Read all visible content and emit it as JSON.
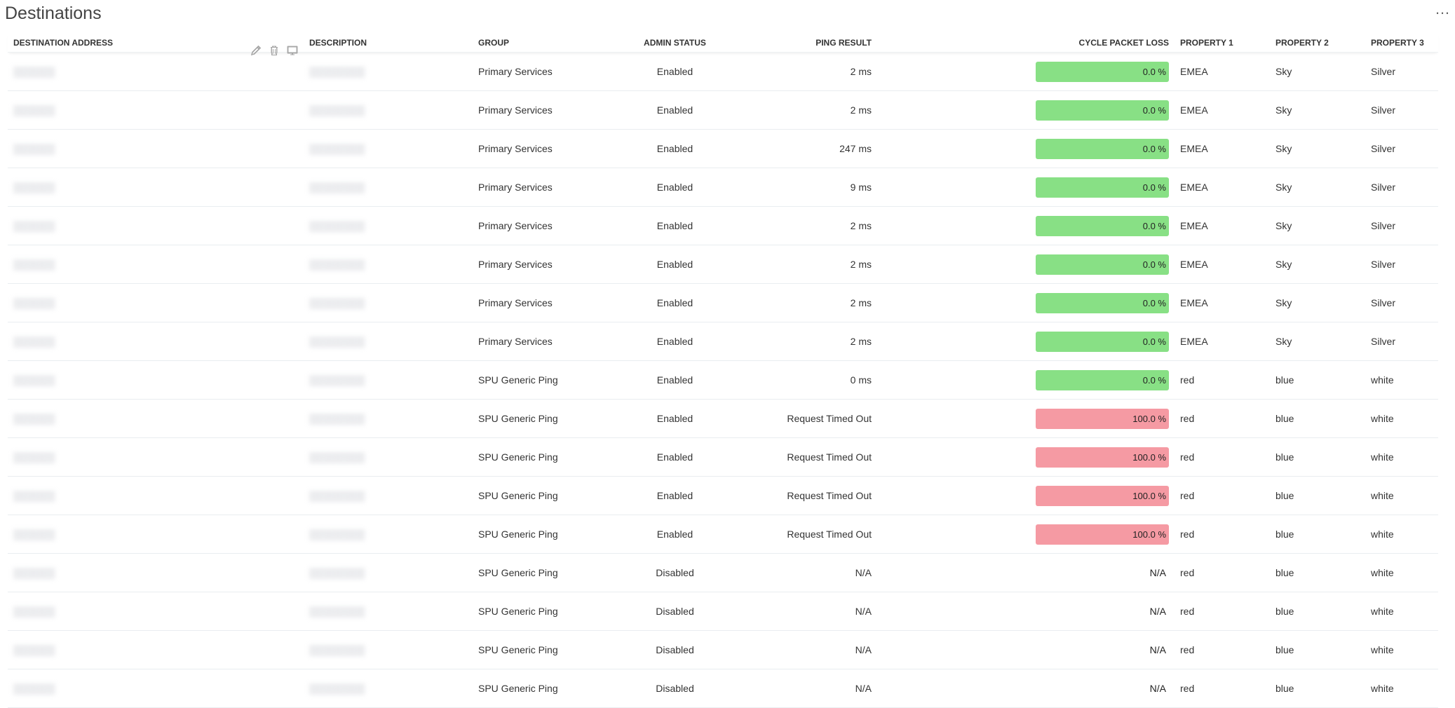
{
  "panel": {
    "title": "Destinations",
    "more_label": "…"
  },
  "columns": {
    "destination_address": "DESTINATION ADDRESS",
    "description": "DESCRIPTION",
    "group": "GROUP",
    "admin_status": "ADMIN STATUS",
    "ping_result": "PING RESULT",
    "cycle_packet_loss": "CYCLE PACKET LOSS",
    "property1": "PROPERTY 1",
    "property2": "PROPERTY 2",
    "property3": "PROPERTY 3"
  },
  "icons": {
    "edit": "pencil-icon",
    "delete": "trash-icon",
    "monitor": "monitor-icon"
  },
  "colors": {
    "loss_ok": "#88e085",
    "loss_bad": "#f59aa3"
  },
  "rows": [
    {
      "address": "",
      "description": "",
      "group": "Primary Services",
      "admin_status": "Enabled",
      "ping_result": "2 ms",
      "packet_loss": "0.0 %",
      "loss_state": "ok",
      "property1": "EMEA",
      "property2": "Sky",
      "property3": "Silver"
    },
    {
      "address": "",
      "description": "",
      "group": "Primary Services",
      "admin_status": "Enabled",
      "ping_result": "2 ms",
      "packet_loss": "0.0 %",
      "loss_state": "ok",
      "property1": "EMEA",
      "property2": "Sky",
      "property3": "Silver"
    },
    {
      "address": "",
      "description": "",
      "group": "Primary Services",
      "admin_status": "Enabled",
      "ping_result": "247 ms",
      "packet_loss": "0.0 %",
      "loss_state": "ok",
      "property1": "EMEA",
      "property2": "Sky",
      "property3": "Silver"
    },
    {
      "address": "",
      "description": "",
      "group": "Primary Services",
      "admin_status": "Enabled",
      "ping_result": "9 ms",
      "packet_loss": "0.0 %",
      "loss_state": "ok",
      "property1": "EMEA",
      "property2": "Sky",
      "property3": "Silver"
    },
    {
      "address": "",
      "description": "",
      "group": "Primary Services",
      "admin_status": "Enabled",
      "ping_result": "2 ms",
      "packet_loss": "0.0 %",
      "loss_state": "ok",
      "property1": "EMEA",
      "property2": "Sky",
      "property3": "Silver"
    },
    {
      "address": "",
      "description": "",
      "group": "Primary Services",
      "admin_status": "Enabled",
      "ping_result": "2 ms",
      "packet_loss": "0.0 %",
      "loss_state": "ok",
      "property1": "EMEA",
      "property2": "Sky",
      "property3": "Silver"
    },
    {
      "address": "",
      "description": "",
      "group": "Primary Services",
      "admin_status": "Enabled",
      "ping_result": "2 ms",
      "packet_loss": "0.0 %",
      "loss_state": "ok",
      "property1": "EMEA",
      "property2": "Sky",
      "property3": "Silver"
    },
    {
      "address": "",
      "description": "",
      "group": "Primary Services",
      "admin_status": "Enabled",
      "ping_result": "2 ms",
      "packet_loss": "0.0 %",
      "loss_state": "ok",
      "property1": "EMEA",
      "property2": "Sky",
      "property3": "Silver"
    },
    {
      "address": "",
      "description": "",
      "group": "SPU Generic Ping",
      "admin_status": "Enabled",
      "ping_result": "0 ms",
      "packet_loss": "0.0 %",
      "loss_state": "ok",
      "property1": "red",
      "property2": "blue",
      "property3": "white"
    },
    {
      "address": "",
      "description": "",
      "group": "SPU Generic Ping",
      "admin_status": "Enabled",
      "ping_result": "Request Timed Out",
      "packet_loss": "100.0 %",
      "loss_state": "bad",
      "property1": "red",
      "property2": "blue",
      "property3": "white"
    },
    {
      "address": "",
      "description": "",
      "group": "SPU Generic Ping",
      "admin_status": "Enabled",
      "ping_result": "Request Timed Out",
      "packet_loss": "100.0 %",
      "loss_state": "bad",
      "property1": "red",
      "property2": "blue",
      "property3": "white"
    },
    {
      "address": "",
      "description": "",
      "group": "SPU Generic Ping",
      "admin_status": "Enabled",
      "ping_result": "Request Timed Out",
      "packet_loss": "100.0 %",
      "loss_state": "bad",
      "property1": "red",
      "property2": "blue",
      "property3": "white"
    },
    {
      "address": "",
      "description": "",
      "group": "SPU Generic Ping",
      "admin_status": "Enabled",
      "ping_result": "Request Timed Out",
      "packet_loss": "100.0 %",
      "loss_state": "bad",
      "property1": "red",
      "property2": "blue",
      "property3": "white"
    },
    {
      "address": "",
      "description": "",
      "group": "SPU Generic Ping",
      "admin_status": "Disabled",
      "ping_result": "N/A",
      "packet_loss": "N/A",
      "loss_state": "none",
      "property1": "red",
      "property2": "blue",
      "property3": "white"
    },
    {
      "address": "",
      "description": "",
      "group": "SPU Generic Ping",
      "admin_status": "Disabled",
      "ping_result": "N/A",
      "packet_loss": "N/A",
      "loss_state": "none",
      "property1": "red",
      "property2": "blue",
      "property3": "white"
    },
    {
      "address": "",
      "description": "",
      "group": "SPU Generic Ping",
      "admin_status": "Disabled",
      "ping_result": "N/A",
      "packet_loss": "N/A",
      "loss_state": "none",
      "property1": "red",
      "property2": "blue",
      "property3": "white"
    },
    {
      "address": "",
      "description": "",
      "group": "SPU Generic Ping",
      "admin_status": "Disabled",
      "ping_result": "N/A",
      "packet_loss": "N/A",
      "loss_state": "none",
      "property1": "red",
      "property2": "blue",
      "property3": "white"
    }
  ]
}
